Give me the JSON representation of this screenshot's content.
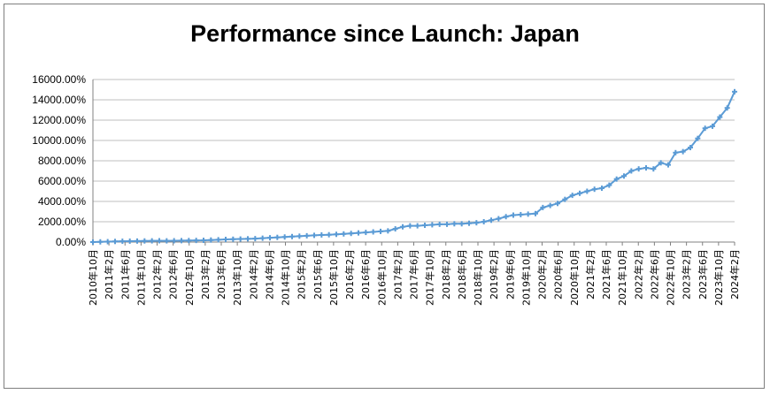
{
  "chart_data": {
    "type": "line",
    "title": "Performance since Launch: Japan",
    "xlabel": "",
    "ylabel": "",
    "ylim": [
      0,
      16000
    ],
    "y_ticks": [
      "0.00%",
      "2000.00%",
      "4000.00%",
      "6000.00%",
      "8000.00%",
      "10000.00%",
      "12000.00%",
      "14000.00%",
      "16000.00%"
    ],
    "grid": true,
    "legend": "none",
    "line_color": "#5b9bd5",
    "x_tick_labels": [
      "2010年10月",
      "2011年2月",
      "2011年6月",
      "2011年10月",
      "2012年2月",
      "2012年6月",
      "2012年10月",
      "2013年2月",
      "2013年6月",
      "2013年10月",
      "2014年2月",
      "2014年6月",
      "2014年10月",
      "2015年2月",
      "2015年6月",
      "2015年10月",
      "2016年2月",
      "2016年6月",
      "2016年10月",
      "2017年2月",
      "2017年6月",
      "2017年10月",
      "2018年2月",
      "2018年6月",
      "2018年10月",
      "2019年2月",
      "2019年6月",
      "2019年10月",
      "2020年2月",
      "2020年6月",
      "2020年10月",
      "2021年2月",
      "2021年6月",
      "2021年10月",
      "2022年2月",
      "2022年6月",
      "2022年10月",
      "2023年2月",
      "2023年6月",
      "2023年10月",
      "2024年2月"
    ],
    "values": [
      0,
      20,
      40,
      60,
      80,
      90,
      100,
      110,
      120,
      130,
      120,
      130,
      140,
      150,
      160,
      170,
      200,
      230,
      260,
      280,
      300,
      320,
      340,
      380,
      420,
      460,
      500,
      540,
      580,
      620,
      660,
      700,
      720,
      760,
      800,
      850,
      900,
      950,
      1000,
      1050,
      1100,
      1300,
      1500,
      1600,
      1600,
      1650,
      1700,
      1750,
      1750,
      1800,
      1800,
      1850,
      1900,
      2000,
      2150,
      2300,
      2500,
      2650,
      2700,
      2750,
      2800,
      3400,
      3600,
      3800,
      4200,
      4600,
      4800,
      5000,
      5200,
      5300,
      5600,
      6200,
      6500,
      7000,
      7200,
      7300,
      7200,
      7800,
      7600,
      8800,
      8900,
      9300,
      10200,
      11200,
      11400,
      12300,
      13200,
      14800
    ]
  }
}
